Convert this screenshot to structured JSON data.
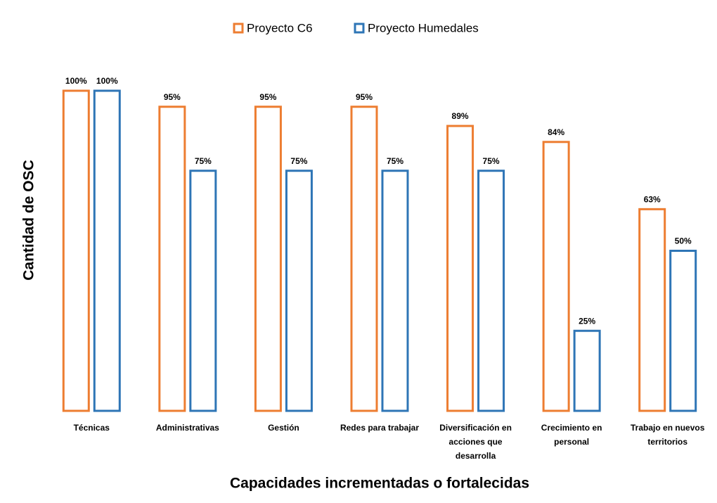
{
  "chart_data": {
    "type": "bar",
    "categories": [
      "Técnicas",
      "Administrativas",
      "Gestión",
      "Redes para trabajar",
      "Diversificación en acciones que desarrolla",
      "Crecimiento en personal",
      "Trabajo en nuevos territorios"
    ],
    "series": [
      {
        "name": "Proyecto C6",
        "color": "#ED7D31",
        "values": [
          100,
          95,
          95,
          95,
          89,
          84,
          63
        ],
        "value_labels": [
          "100%",
          "95%",
          "95%",
          "95%",
          "89%",
          "84%",
          "63%"
        ]
      },
      {
        "name": "Proyecto Humedales",
        "color": "#2E75B6",
        "values": [
          100,
          75,
          75,
          75,
          75,
          25,
          50
        ],
        "value_labels": [
          "100%",
          "75%",
          "75%",
          "75%",
          "75%",
          "25%",
          "50%"
        ]
      }
    ],
    "ylabel": "Cantidad de OSC",
    "xlabel": "Capacidades incrementadas o fortalecidas",
    "ylim": [
      0,
      100
    ],
    "legend": "top"
  }
}
